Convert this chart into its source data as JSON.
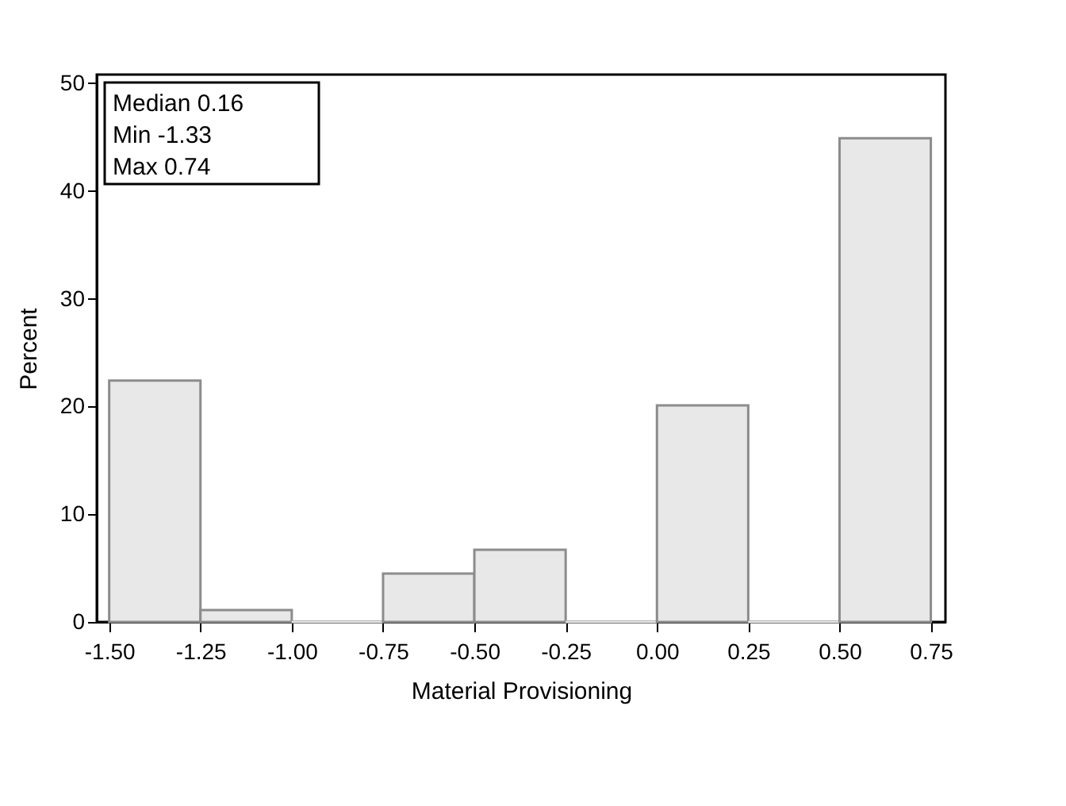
{
  "chart_data": {
    "type": "histogram",
    "xlabel": "Material Provisioning",
    "ylabel": "Percent",
    "bins": [
      -1.5,
      -1.25,
      -1.0,
      -0.75,
      -0.5,
      -0.25,
      0.0,
      0.25,
      0.5,
      0.75
    ],
    "values": [
      22.4,
      1.1,
      0,
      4.5,
      6.7,
      0,
      20.1,
      0,
      44.9
    ],
    "color": "#e8e8e8",
    "xlim": [
      -1.534,
      0.79
    ],
    "ylim": [
      0,
      50.8
    ],
    "xticks": [
      {
        "value": -1.5,
        "label": "-1.50"
      },
      {
        "value": -1.25,
        "label": "-1.25"
      },
      {
        "value": -1.0,
        "label": "-1.00"
      },
      {
        "value": -0.75,
        "label": "-0.75"
      },
      {
        "value": -0.5,
        "label": "-0.50"
      },
      {
        "value": -0.25,
        "label": "-0.25"
      },
      {
        "value": 0.0,
        "label": "0.00"
      },
      {
        "value": 0.25,
        "label": "0.25"
      },
      {
        "value": 0.5,
        "label": "0.50"
      },
      {
        "value": 0.75,
        "label": "0.75"
      }
    ],
    "yticks": [
      0,
      10,
      20,
      30,
      40,
      50
    ],
    "annotations": [
      "Median  0.16",
      "Min  -1.33",
      "Max  0.74"
    ],
    "grid": false
  }
}
